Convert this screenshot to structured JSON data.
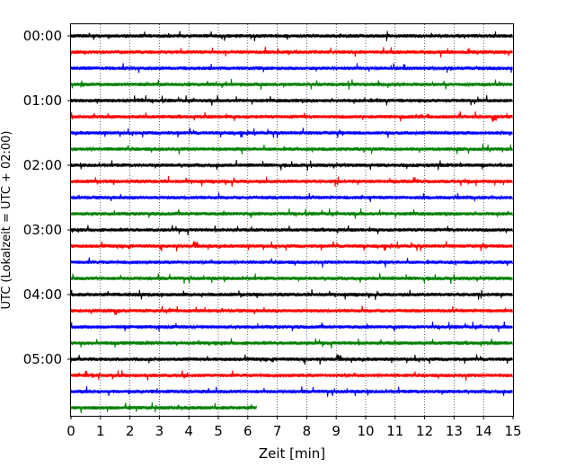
{
  "chart_data": {
    "type": "line",
    "title": "",
    "xlabel": "Zeit  [min]",
    "ylabel": "UTC (Lokalzeit = UTC + 02:00)",
    "xlim": [
      0,
      15
    ],
    "x_ticks": [
      "0",
      "1",
      "2",
      "3",
      "4",
      "5",
      "6",
      "7",
      "8",
      "9",
      "10",
      "11",
      "12",
      "13",
      "14",
      "15"
    ],
    "y_tick_labels": [
      "00:00",
      "01:00",
      "02:00",
      "03:00",
      "04:00",
      "05:00"
    ],
    "grid": "vertical dotted",
    "trace_minutes": 15,
    "traces_per_hour": 4,
    "colors": [
      "#000000",
      "#ff0000",
      "#0000ff",
      "#008000"
    ],
    "traces": [
      {
        "start": "00:00",
        "end_min": 15
      },
      {
        "start": "00:15",
        "end_min": 15
      },
      {
        "start": "00:30",
        "end_min": 15
      },
      {
        "start": "00:45",
        "end_min": 15
      },
      {
        "start": "01:00",
        "end_min": 15
      },
      {
        "start": "01:15",
        "end_min": 15
      },
      {
        "start": "01:30",
        "end_min": 15
      },
      {
        "start": "01:45",
        "end_min": 15
      },
      {
        "start": "02:00",
        "end_min": 15
      },
      {
        "start": "02:15",
        "end_min": 15
      },
      {
        "start": "02:30",
        "end_min": 15
      },
      {
        "start": "02:45",
        "end_min": 15
      },
      {
        "start": "03:00",
        "end_min": 15
      },
      {
        "start": "03:15",
        "end_min": 15
      },
      {
        "start": "03:30",
        "end_min": 15
      },
      {
        "start": "03:45",
        "end_min": 15
      },
      {
        "start": "04:00",
        "end_min": 15
      },
      {
        "start": "04:15",
        "end_min": 15
      },
      {
        "start": "04:30",
        "end_min": 15
      },
      {
        "start": "04:45",
        "end_min": 15
      },
      {
        "start": "05:00",
        "end_min": 15
      },
      {
        "start": "05:15",
        "end_min": 15
      },
      {
        "start": "05:30",
        "end_min": 15
      },
      {
        "start": "05:45",
        "end_min": 6.3
      }
    ]
  }
}
